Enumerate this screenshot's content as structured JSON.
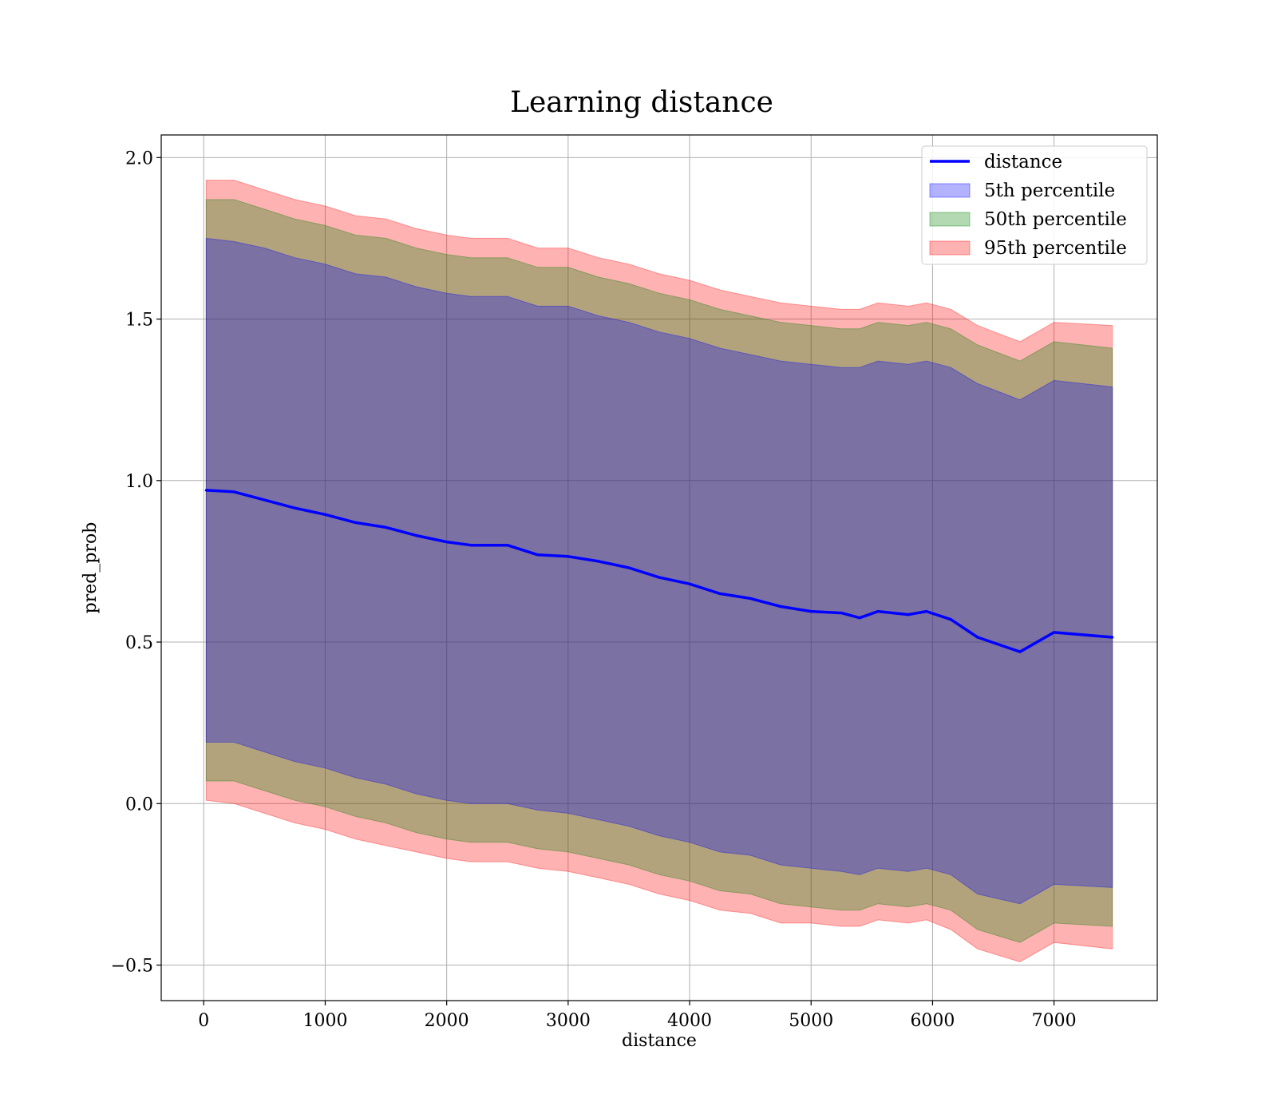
{
  "chart_data": {
    "type": "line",
    "title": "Learning distance",
    "xlabel": "distance",
    "ylabel": "pred_prob",
    "xlim": [
      -350,
      7850
    ],
    "ylim": [
      -0.61,
      2.07
    ],
    "xticks": [
      0,
      1000,
      2000,
      3000,
      4000,
      5000,
      6000,
      7000
    ],
    "yticks": [
      -0.5,
      0.0,
      0.5,
      1.0,
      1.5,
      2.0
    ],
    "xtick_labels": [
      "0",
      "1000",
      "2000",
      "3000",
      "4000",
      "5000",
      "6000",
      "7000"
    ],
    "ytick_labels": [
      "−0.5",
      "0.0",
      "0.5",
      "1.0",
      "1.5",
      "2.0"
    ],
    "grid": true,
    "legend_position": "top-right",
    "x": [
      20,
      250,
      500,
      750,
      1000,
      1250,
      1500,
      1750,
      2000,
      2200,
      2500,
      2750,
      3000,
      3250,
      3500,
      3750,
      4000,
      4250,
      4500,
      4750,
      5000,
      5250,
      5400,
      5550,
      5800,
      5950,
      6150,
      6370,
      6720,
      7000,
      7480
    ],
    "line": {
      "name": "distance",
      "color": "#0000ff",
      "values": [
        0.97,
        0.965,
        0.94,
        0.915,
        0.895,
        0.87,
        0.855,
        0.83,
        0.81,
        0.8,
        0.8,
        0.77,
        0.765,
        0.75,
        0.73,
        0.7,
        0.68,
        0.65,
        0.635,
        0.61,
        0.595,
        0.59,
        0.575,
        0.595,
        0.585,
        0.595,
        0.57,
        0.515,
        0.47,
        0.53,
        0.515
      ]
    },
    "series": [
      {
        "name": "5th percentile",
        "color": "#0000ff",
        "lower": [
          0.19,
          0.19,
          0.16,
          0.13,
          0.11,
          0.08,
          0.06,
          0.03,
          0.01,
          0.0,
          0.0,
          -0.02,
          -0.03,
          -0.05,
          -0.07,
          -0.1,
          -0.12,
          -0.15,
          -0.16,
          -0.19,
          -0.2,
          -0.21,
          -0.22,
          -0.2,
          -0.21,
          -0.2,
          -0.22,
          -0.28,
          -0.31,
          -0.25,
          -0.26
        ],
        "upper": [
          1.75,
          1.74,
          1.72,
          1.69,
          1.67,
          1.64,
          1.63,
          1.6,
          1.58,
          1.57,
          1.57,
          1.54,
          1.54,
          1.51,
          1.49,
          1.46,
          1.44,
          1.41,
          1.39,
          1.37,
          1.36,
          1.35,
          1.35,
          1.37,
          1.36,
          1.37,
          1.35,
          1.3,
          1.25,
          1.31,
          1.29
        ]
      },
      {
        "name": "50th percentile",
        "color": "#008000",
        "lower": [
          0.07,
          0.07,
          0.04,
          0.01,
          -0.01,
          -0.04,
          -0.06,
          -0.09,
          -0.11,
          -0.12,
          -0.12,
          -0.14,
          -0.15,
          -0.17,
          -0.19,
          -0.22,
          -0.24,
          -0.27,
          -0.28,
          -0.31,
          -0.32,
          -0.33,
          -0.33,
          -0.31,
          -0.32,
          -0.31,
          -0.33,
          -0.39,
          -0.43,
          -0.37,
          -0.38
        ],
        "upper": [
          1.87,
          1.87,
          1.84,
          1.81,
          1.79,
          1.76,
          1.75,
          1.72,
          1.7,
          1.69,
          1.69,
          1.66,
          1.66,
          1.63,
          1.61,
          1.58,
          1.56,
          1.53,
          1.51,
          1.49,
          1.48,
          1.47,
          1.47,
          1.49,
          1.48,
          1.49,
          1.47,
          1.42,
          1.37,
          1.43,
          1.41
        ]
      },
      {
        "name": "95th percentile",
        "color": "#ff0000",
        "lower": [
          0.01,
          0.0,
          -0.03,
          -0.06,
          -0.08,
          -0.11,
          -0.13,
          -0.15,
          -0.17,
          -0.18,
          -0.18,
          -0.2,
          -0.21,
          -0.23,
          -0.25,
          -0.28,
          -0.3,
          -0.33,
          -0.34,
          -0.37,
          -0.37,
          -0.38,
          -0.38,
          -0.36,
          -0.37,
          -0.36,
          -0.39,
          -0.45,
          -0.49,
          -0.43,
          -0.45
        ],
        "upper": [
          1.93,
          1.93,
          1.9,
          1.87,
          1.85,
          1.82,
          1.81,
          1.78,
          1.76,
          1.75,
          1.75,
          1.72,
          1.72,
          1.69,
          1.67,
          1.64,
          1.62,
          1.59,
          1.57,
          1.55,
          1.54,
          1.53,
          1.53,
          1.55,
          1.54,
          1.55,
          1.53,
          1.48,
          1.43,
          1.49,
          1.48
        ]
      }
    ]
  }
}
